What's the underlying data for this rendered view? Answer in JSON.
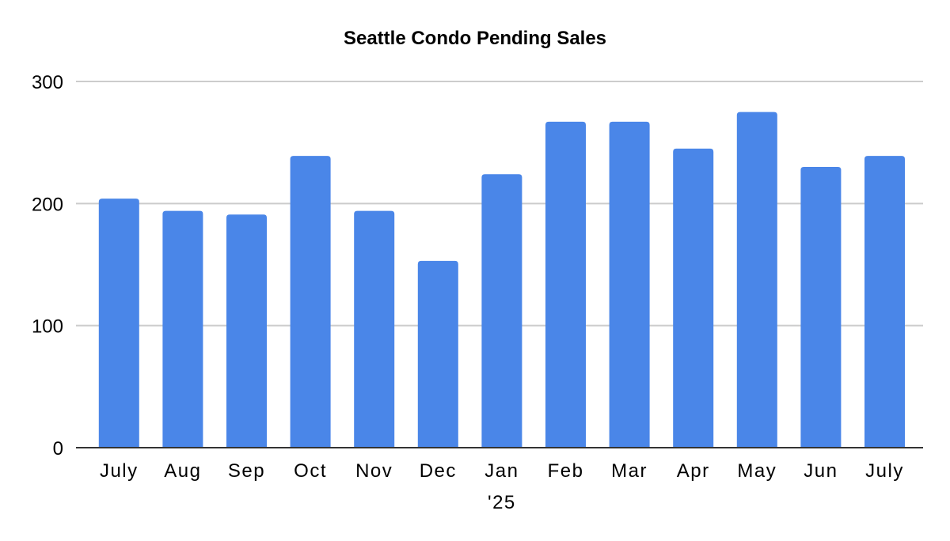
{
  "chart_data": {
    "type": "bar",
    "title": "Seattle Condo Pending Sales",
    "categories": [
      "July",
      "Aug",
      "Sep",
      "Oct",
      "Nov",
      "Dec",
      "Jan",
      "Feb",
      "Mar",
      "Apr",
      "May",
      "Jun",
      "July"
    ],
    "category_sublabels": [
      "",
      "",
      "",
      "",
      "",
      "",
      "'25",
      "",
      "",
      "",
      "",
      "",
      ""
    ],
    "values": [
      204,
      194,
      191,
      239,
      194,
      153,
      224,
      267,
      267,
      245,
      275,
      230,
      239
    ],
    "xlabel": "",
    "ylabel": "",
    "ylim": [
      0,
      300
    ],
    "yticks": [
      0,
      100,
      200,
      300
    ],
    "grid": true,
    "legend": "none",
    "colors": {
      "bar": "#4A86E8",
      "grid": "#CCCCCC",
      "axis": "#333333",
      "text": "#000000"
    }
  }
}
